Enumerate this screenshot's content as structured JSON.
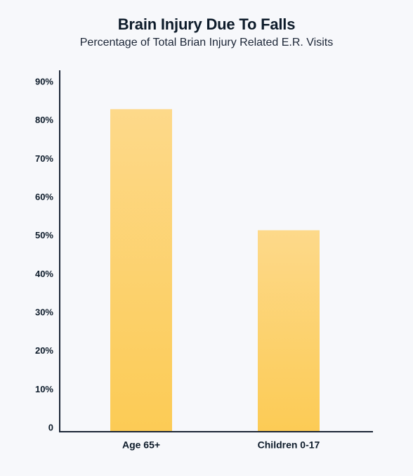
{
  "colors": {
    "background": "#f7f8fb",
    "text": "#0d1b2a",
    "axis": "#1b2536",
    "bar_top": "#fdd98a",
    "bar_bottom": "#fccb55"
  },
  "chart_data": {
    "type": "bar",
    "title": "Brain Injury Due To Falls",
    "subtitle": "Percentage of Total Brian Injury Related E.R. Visits",
    "xlabel": "",
    "ylabel": "",
    "categories": [
      "Age 65+",
      "Children 0-17"
    ],
    "values": [
      83,
      51.5
    ],
    "ylim": [
      0,
      94
    ],
    "yticks": [
      0,
      10,
      20,
      30,
      40,
      50,
      60,
      70,
      80,
      90
    ],
    "ytick_labels": [
      "0",
      "10%",
      "20%",
      "30%",
      "40%",
      "50%",
      "60%",
      "70%",
      "80%",
      "90%"
    ],
    "grid": false,
    "legend": "none"
  }
}
